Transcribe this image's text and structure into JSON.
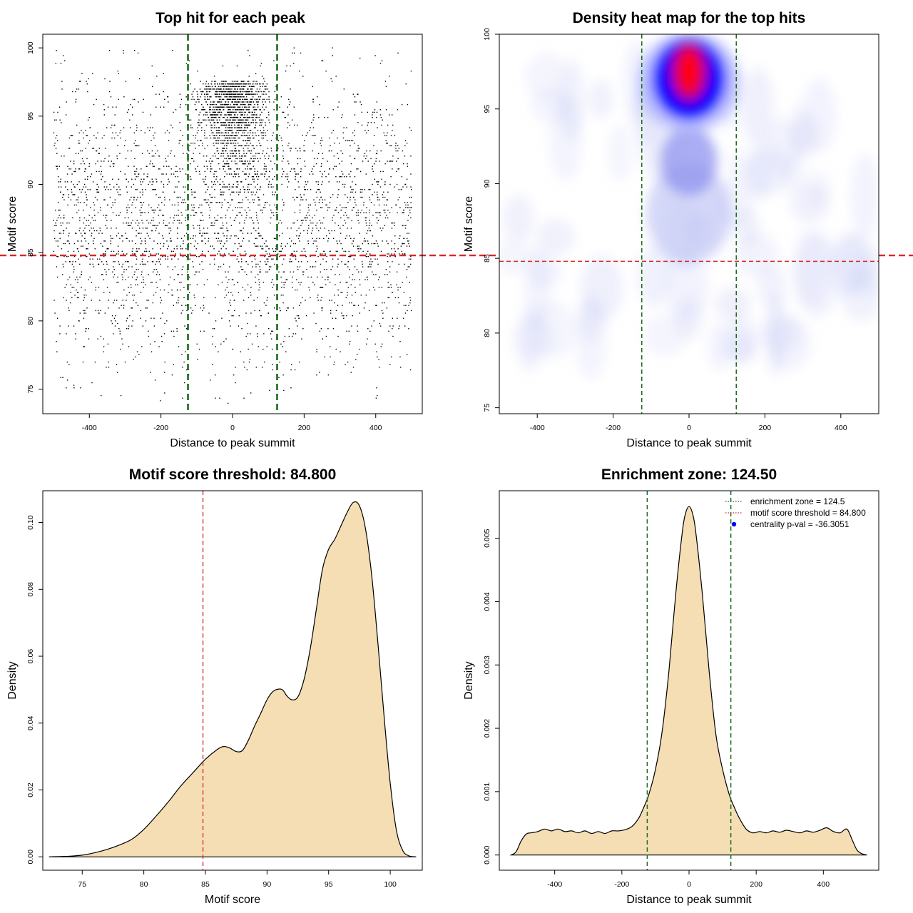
{
  "colors": {
    "threshold_line": "#d62728",
    "zone_line": "#1a6b1a",
    "density_fill": "#f5deb3",
    "heat_low": "#ffffff",
    "heat_mid": "#0000ff",
    "heat_high": "#ff0000",
    "points": "#000000"
  },
  "chart_data": [
    {
      "id": "scatter",
      "type": "scatter",
      "title": "Top hit for each peak",
      "xlabel": "Distance to peak summit",
      "ylabel": "Motif score",
      "xlim": [
        -530,
        530
      ],
      "ylim": [
        73.2,
        101
      ],
      "xticks": [
        -400,
        -200,
        0,
        200,
        400
      ],
      "xtick_labels": [
        "-400",
        "-200",
        "0",
        "200",
        "400"
      ],
      "yticks": [
        75,
        80,
        85,
        90,
        95,
        100
      ],
      "ytick_labels": [
        "75",
        "80",
        "85",
        "90",
        "95",
        "100"
      ],
      "vlines": [
        -124.5,
        124.5
      ],
      "hline": 84.8,
      "x_range": [
        -500,
        500
      ],
      "y_range": [
        74,
        100
      ],
      "n_points": 4600,
      "note": "Approximately uniform x; heavy concentration of high scores (>=93) within +/-124.5 of summit."
    },
    {
      "id": "heatmap",
      "type": "heatmap",
      "title": "Density heat map for the top hits",
      "xlabel": "Distance to peak summit",
      "ylabel": "Motif score",
      "xlim": [
        -500,
        500
      ],
      "ylim": [
        74.6,
        100
      ],
      "xticks": [
        -400,
        -200,
        0,
        200,
        400
      ],
      "xtick_labels": [
        "-400",
        "-200",
        "0",
        "200",
        "400"
      ],
      "yticks": [
        75,
        80,
        85,
        90,
        95,
        100
      ],
      "ytick_labels": [
        "75",
        "80",
        "85",
        "90",
        "95",
        "100"
      ],
      "vlines": [
        -124.5,
        124.5
      ],
      "hline": 84.8,
      "peak": {
        "x": 0,
        "y": 97.5
      }
    },
    {
      "id": "score_density",
      "type": "area",
      "title": "Motif score threshold: 84.800",
      "xlabel": "Motif score",
      "ylabel": "Density",
      "xlim": [
        71.8,
        102.6
      ],
      "ylim": [
        -0.004,
        0.1095
      ],
      "xticks": [
        75,
        80,
        85,
        90,
        95,
        100
      ],
      "xtick_labels": [
        "75",
        "80",
        "85",
        "90",
        "95",
        "100"
      ],
      "yticks": [
        0,
        0.02,
        0.04,
        0.06,
        0.08,
        0.1
      ],
      "ytick_labels": [
        "0.00",
        "0.02",
        "0.04",
        "0.06",
        "0.08",
        "0.10"
      ],
      "vline": 84.8,
      "x": [
        72.3,
        74,
        75,
        76,
        77,
        78,
        79,
        80,
        81,
        82,
        83,
        84,
        85,
        86,
        86.5,
        87,
        87.5,
        88,
        88.5,
        89,
        89.5,
        90,
        90.5,
        91,
        91.3,
        91.6,
        92,
        92.5,
        93,
        93.5,
        94,
        94.5,
        95,
        95.5,
        96,
        96.5,
        97,
        97.5,
        98,
        98.5,
        99,
        99.5,
        100,
        100.5,
        101,
        101.5,
        102.1
      ],
      "y": [
        0,
        0.0002,
        0.0005,
        0.0012,
        0.0022,
        0.0035,
        0.0052,
        0.0082,
        0.0122,
        0.0165,
        0.0212,
        0.0252,
        0.0292,
        0.0322,
        0.033,
        0.0325,
        0.0315,
        0.0318,
        0.035,
        0.0392,
        0.043,
        0.047,
        0.0495,
        0.0502,
        0.0498,
        0.0482,
        0.047,
        0.0478,
        0.053,
        0.062,
        0.074,
        0.086,
        0.092,
        0.095,
        0.099,
        0.103,
        0.106,
        0.105,
        0.098,
        0.084,
        0.064,
        0.042,
        0.022,
        0.008,
        0.002,
        0.0003,
        0
      ]
    },
    {
      "id": "distance_density",
      "type": "area",
      "title": "Enrichment zone: 124.50",
      "xlabel": "Distance to peak summit",
      "ylabel": "Density",
      "xlim": [
        -565,
        565
      ],
      "ylim": [
        -0.00024,
        0.00575
      ],
      "xticks": [
        -400,
        -200,
        0,
        200,
        400
      ],
      "xtick_labels": [
        "-400",
        "-200",
        "0",
        "200",
        "400"
      ],
      "yticks": [
        0,
        0.001,
        0.002,
        0.003,
        0.004,
        0.005
      ],
      "ytick_labels": [
        "0.000",
        "0.001",
        "0.002",
        "0.003",
        "0.004",
        "0.005"
      ],
      "vlines": [
        -124.5,
        124.5
      ],
      "x": [
        -530,
        -515,
        -500,
        -485,
        -470,
        -450,
        -430,
        -410,
        -390,
        -370,
        -350,
        -330,
        -310,
        -290,
        -270,
        -250,
        -230,
        -210,
        -190,
        -170,
        -150,
        -135,
        -120,
        -100,
        -80,
        -60,
        -40,
        -20,
        -10,
        0,
        10,
        20,
        40,
        60,
        80,
        100,
        120,
        135,
        150,
        170,
        190,
        210,
        230,
        250,
        270,
        290,
        310,
        330,
        350,
        370,
        390,
        410,
        430,
        450,
        470,
        485,
        500,
        515,
        530
      ],
      "y": [
        0,
        5e-05,
        0.00022,
        0.00033,
        0.00035,
        0.00037,
        0.00041,
        0.00038,
        0.00041,
        0.00037,
        0.00038,
        0.00035,
        0.00038,
        0.00034,
        0.00037,
        0.00034,
        0.00038,
        0.00038,
        0.0004,
        0.00045,
        0.00058,
        0.00075,
        0.00095,
        0.00135,
        0.00195,
        0.0029,
        0.0041,
        0.0051,
        0.0054,
        0.0055,
        0.0054,
        0.0051,
        0.0041,
        0.0029,
        0.0019,
        0.00135,
        0.00095,
        0.00075,
        0.00058,
        0.00041,
        0.00035,
        0.00037,
        0.00035,
        0.00038,
        0.00036,
        0.00039,
        0.00037,
        0.00035,
        0.00038,
        0.00036,
        0.00039,
        0.00043,
        0.00037,
        0.00035,
        0.00041,
        0.00025,
        8e-05,
        2e-05,
        0
      ]
    }
  ],
  "legend": {
    "items": [
      {
        "label": "enrichment zone = 124.5",
        "style": "dotted",
        "color": "#1a6b1a"
      },
      {
        "label": "motif score threshold = 84.800",
        "style": "dotted",
        "color": "#d62728"
      },
      {
        "label": "centrality p-val = -36.3051",
        "style": "point",
        "color": "#0000ff"
      }
    ]
  }
}
